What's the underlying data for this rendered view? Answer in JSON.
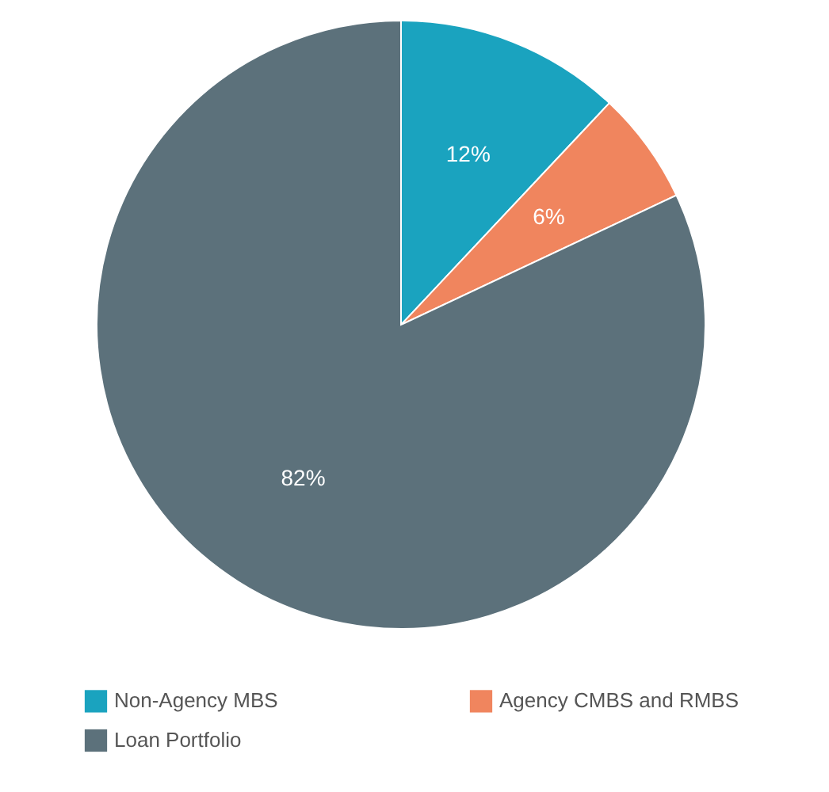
{
  "chart_data": {
    "type": "pie",
    "categories": [
      "Non-Agency MBS",
      "Agency CMBS and RMBS",
      "Loan Portfolio"
    ],
    "values": [
      12,
      6,
      82
    ],
    "colors": [
      "#1aa3bf",
      "#f0855e",
      "#5c717b"
    ],
    "value_labels": [
      "12%",
      "6%",
      "82%"
    ],
    "legend": "bottom"
  }
}
